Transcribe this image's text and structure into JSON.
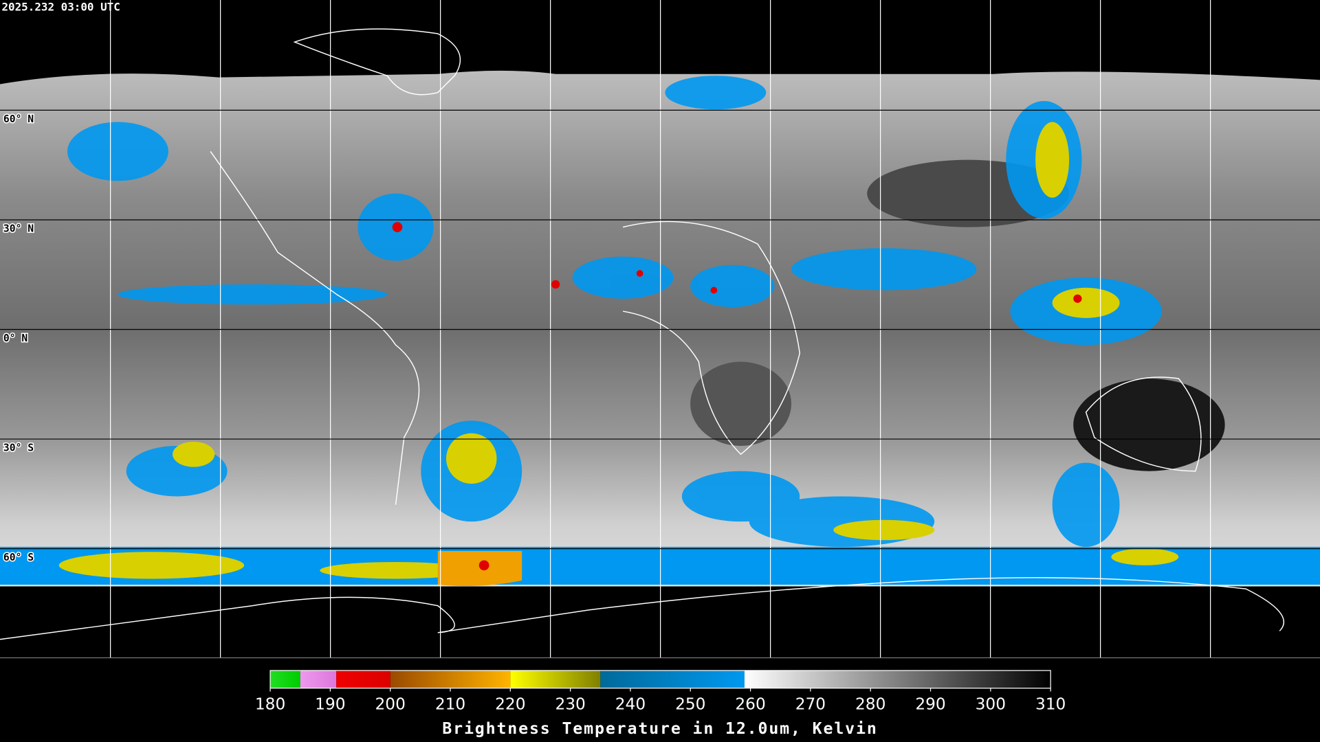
{
  "header": {
    "timestamp": "2025.232 03:00 UTC"
  },
  "map": {
    "latitude_labels": [
      "60° N",
      "30° N",
      "0° N",
      "30° S",
      "60° S"
    ]
  },
  "colorbar": {
    "lim": [
      180,
      310
    ],
    "ticks": [
      180,
      190,
      200,
      210,
      220,
      230,
      240,
      250,
      260,
      270,
      280,
      290,
      300,
      310
    ],
    "segments": [
      {
        "start": 180,
        "end": 185,
        "colors": [
          "#22dd22",
          "#00cc00"
        ]
      },
      {
        "start": 185,
        "end": 191,
        "colors": [
          "#ee99ee",
          "#dd77dd"
        ]
      },
      {
        "start": 191,
        "end": 200,
        "colors": [
          "#ee0000",
          "#dd0000"
        ]
      },
      {
        "start": 200,
        "end": 220,
        "colors": [
          "#9a4a00",
          "#ffb400"
        ]
      },
      {
        "start": 220,
        "end": 235,
        "colors": [
          "#ffff00",
          "#808000"
        ]
      },
      {
        "start": 235,
        "end": 259,
        "colors": [
          "#006a9a",
          "#0098f0"
        ]
      },
      {
        "start": 259,
        "end": 310,
        "colors": [
          "#ffffff",
          "#000000"
        ]
      }
    ],
    "title": "Brightness Temperature in 12.0um, Kelvin"
  }
}
